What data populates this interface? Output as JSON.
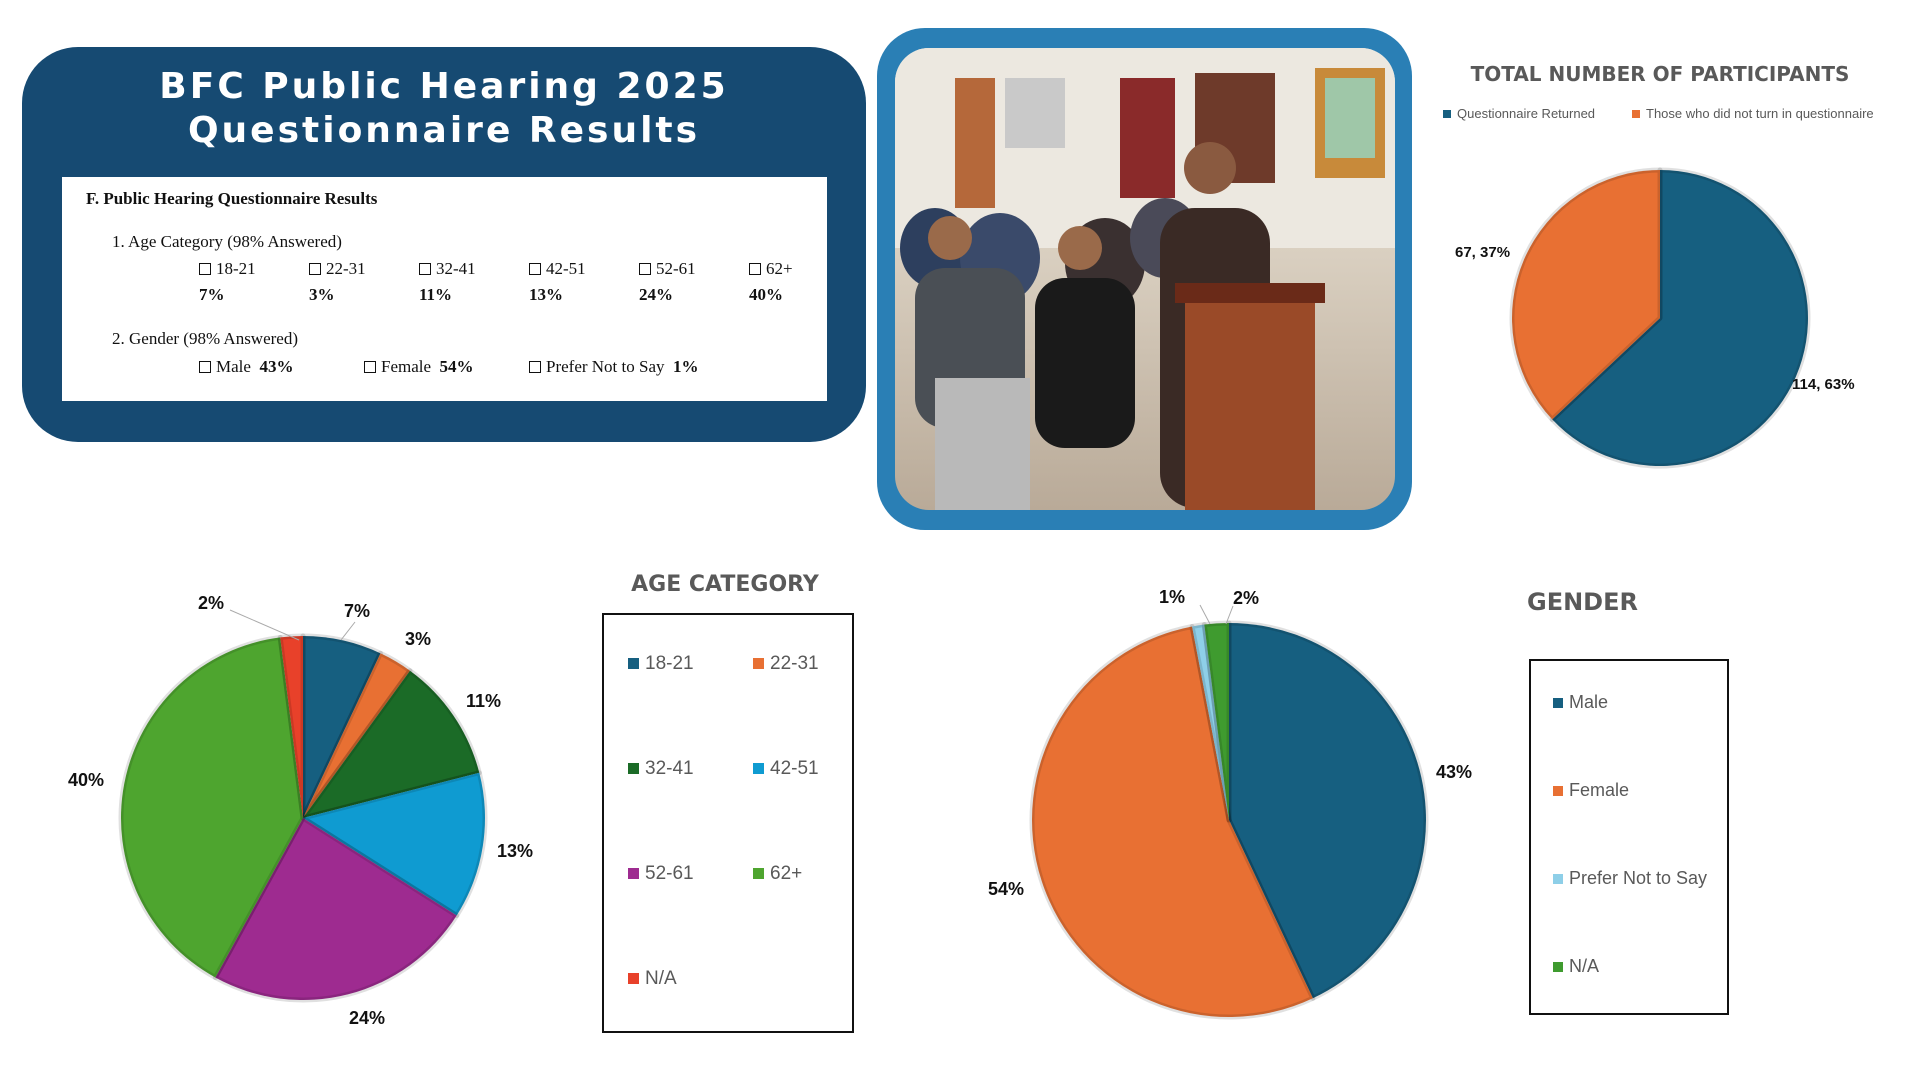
{
  "header": {
    "title_line1": "BFC Public Hearing 2025",
    "title_line2": "Questionnaire Results"
  },
  "document": {
    "section": "F.  Public Hearing Questionnaire Results",
    "q1_label": "1.   Age Category (98% Answered)",
    "q1_options": [
      {
        "label": "18-21",
        "value": "7%"
      },
      {
        "label": "22-31",
        "value": "3%"
      },
      {
        "label": "32-41",
        "value": "11%"
      },
      {
        "label": "42-51",
        "value": "13%"
      },
      {
        "label": "52-61",
        "value": "24%"
      },
      {
        "label": "62+",
        "value": "40%"
      }
    ],
    "q2_label": "2.   Gender (98% Answered)",
    "q2_options": [
      {
        "label": "Male",
        "value": "43%"
      },
      {
        "label": "Female",
        "value": "54%"
      },
      {
        "label": "Prefer Not to Say",
        "value": "1%"
      }
    ]
  },
  "photo": {
    "icon": "photo-public-hearing"
  },
  "chart_data": [
    {
      "type": "pie",
      "title": "TOTAL NUMBER OF PARTICIPANTS",
      "legend_position": "top",
      "categories": [
        "Questionnaire Returned",
        "Those who did not turn in questionnaire"
      ],
      "values": [
        114,
        67
      ],
      "percent": [
        63,
        37
      ],
      "data_labels": [
        "114, 63%",
        "67, 37%"
      ],
      "colors": [
        "#165f80",
        "#e87033"
      ]
    },
    {
      "type": "pie",
      "title": "AGE CATEGORY",
      "legend_position": "right",
      "categories": [
        "18-21",
        "22-31",
        "32-41",
        "42-51",
        "52-61",
        "62+",
        "N/A"
      ],
      "values": [
        7,
        3,
        11,
        13,
        24,
        40,
        2
      ],
      "data_labels": [
        "7%",
        "3%",
        "11%",
        "13%",
        "24%",
        "40%",
        "2%"
      ],
      "colors": [
        "#165f80",
        "#e87033",
        "#1b6b27",
        "#0f9bd1",
        "#9e2b90",
        "#4ea52f",
        "#e8412a"
      ]
    },
    {
      "type": "pie",
      "title": "GENDER",
      "legend_position": "right",
      "categories": [
        "Male",
        "Female",
        "Prefer Not to Say",
        "N/A"
      ],
      "values": [
        43,
        54,
        1,
        2
      ],
      "data_labels": [
        "43%",
        "54%",
        "1%",
        "2%"
      ],
      "colors": [
        "#165f80",
        "#e87033",
        "#8ecfe8",
        "#3f9b2f"
      ]
    }
  ]
}
